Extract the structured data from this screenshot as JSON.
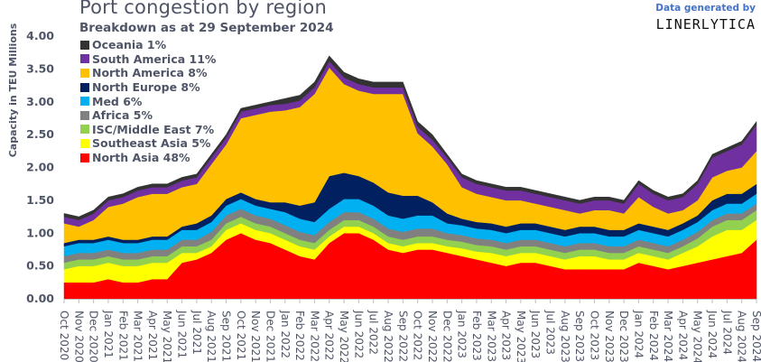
{
  "chart_data": {
    "type": "area",
    "stacked": true,
    "title": "Port congestion by region",
    "subtitle": "Breakdown as at 29 September 2024",
    "ylabel": "Capacity in TEU Millions",
    "xlabel": "",
    "ylim": [
      0,
      4
    ],
    "yticks": [
      "0.00",
      "0.50",
      "1.00",
      "1.50",
      "2.00",
      "2.50",
      "3.00",
      "3.50",
      "4.00"
    ],
    "grid": false,
    "legend_position": "top-left",
    "categories": [
      "Oct 2020",
      "Nov 2020",
      "Dec 2020",
      "Jan 2021",
      "Feb 2021",
      "Mar 2021",
      "Apr 2021",
      "May 2021",
      "Jun 2021",
      "Jul 2021",
      "Aug 2021",
      "Sep 2021",
      "Oct 2021",
      "Nov 2021",
      "Dec 2021",
      "Jan 2022",
      "Feb 2022",
      "Mar 2022",
      "Apr 2022",
      "May 2022",
      "Jun 2022",
      "Jul 2022",
      "Aug 2022",
      "Sep 2022",
      "Oct 2022",
      "Nov 2022",
      "Dec 2022",
      "Jan 2023",
      "Feb 2023",
      "Mar 2023",
      "Apr 2023",
      "May 2023",
      "Jun 2023",
      "Jul 2023",
      "Aug 2023",
      "Sep 2023",
      "Oct 2023",
      "Nov 2023",
      "Dec 2023",
      "Jan 2024",
      "Feb 2024",
      "Mar 2024",
      "Apr 2024",
      "May 2024",
      "Jun 2024",
      "Jul 2024",
      "Aug 2024",
      "Sep 2024"
    ],
    "series": [
      {
        "name": "North Asia 48%",
        "color": "#ff0000",
        "values": [
          0.25,
          0.25,
          0.25,
          0.3,
          0.25,
          0.25,
          0.3,
          0.3,
          0.55,
          0.6,
          0.7,
          0.9,
          1.0,
          0.9,
          0.85,
          0.75,
          0.65,
          0.6,
          0.85,
          1.0,
          1.0,
          0.9,
          0.75,
          0.7,
          0.75,
          0.75,
          0.7,
          0.65,
          0.6,
          0.55,
          0.5,
          0.55,
          0.55,
          0.5,
          0.45,
          0.45,
          0.45,
          0.45,
          0.45,
          0.55,
          0.5,
          0.45,
          0.5,
          0.55,
          0.6,
          0.65,
          0.7,
          0.9
        ]
      },
      {
        "name": "Southeast Asia 5%",
        "color": "#ffff00",
        "values": [
          0.2,
          0.25,
          0.25,
          0.25,
          0.25,
          0.25,
          0.25,
          0.25,
          0.15,
          0.1,
          0.1,
          0.15,
          0.15,
          0.15,
          0.15,
          0.15,
          0.15,
          0.15,
          0.1,
          0.1,
          0.1,
          0.1,
          0.1,
          0.1,
          0.1,
          0.1,
          0.1,
          0.12,
          0.12,
          0.15,
          0.15,
          0.15,
          0.15,
          0.15,
          0.15,
          0.2,
          0.2,
          0.15,
          0.15,
          0.15,
          0.15,
          0.15,
          0.2,
          0.25,
          0.35,
          0.4,
          0.35,
          0.3
        ]
      },
      {
        "name": "ISC/Middle East 7%",
        "color": "#92d050",
        "values": [
          0.1,
          0.1,
          0.1,
          0.1,
          0.1,
          0.1,
          0.1,
          0.1,
          0.1,
          0.1,
          0.1,
          0.1,
          0.1,
          0.1,
          0.1,
          0.1,
          0.1,
          0.1,
          0.1,
          0.1,
          0.1,
          0.1,
          0.1,
          0.1,
          0.1,
          0.1,
          0.1,
          0.1,
          0.1,
          0.1,
          0.1,
          0.1,
          0.1,
          0.1,
          0.1,
          0.1,
          0.1,
          0.1,
          0.1,
          0.1,
          0.1,
          0.1,
          0.1,
          0.12,
          0.15,
          0.15,
          0.15,
          0.15
        ]
      },
      {
        "name": "Africa 5%",
        "color": "#808080",
        "values": [
          0.1,
          0.1,
          0.1,
          0.1,
          0.1,
          0.1,
          0.1,
          0.1,
          0.1,
          0.1,
          0.12,
          0.12,
          0.12,
          0.12,
          0.12,
          0.12,
          0.12,
          0.12,
          0.12,
          0.12,
          0.12,
          0.12,
          0.12,
          0.12,
          0.12,
          0.12,
          0.1,
          0.1,
          0.1,
          0.1,
          0.1,
          0.1,
          0.1,
          0.1,
          0.1,
          0.1,
          0.1,
          0.1,
          0.1,
          0.1,
          0.1,
          0.1,
          0.1,
          0.1,
          0.1,
          0.1,
          0.1,
          0.1
        ]
      },
      {
        "name": "Med 6%",
        "color": "#00b0f0",
        "values": [
          0.15,
          0.15,
          0.15,
          0.15,
          0.15,
          0.15,
          0.15,
          0.15,
          0.15,
          0.15,
          0.15,
          0.15,
          0.15,
          0.15,
          0.15,
          0.2,
          0.2,
          0.2,
          0.2,
          0.2,
          0.2,
          0.2,
          0.2,
          0.2,
          0.2,
          0.2,
          0.15,
          0.15,
          0.15,
          0.15,
          0.15,
          0.15,
          0.15,
          0.15,
          0.15,
          0.15,
          0.15,
          0.15,
          0.15,
          0.15,
          0.15,
          0.15,
          0.15,
          0.15,
          0.15,
          0.15,
          0.15,
          0.15
        ]
      },
      {
        "name": "North Europe 8%",
        "color": "#002060",
        "values": [
          0.05,
          0.05,
          0.05,
          0.05,
          0.05,
          0.05,
          0.05,
          0.05,
          0.05,
          0.1,
          0.1,
          0.1,
          0.1,
          0.1,
          0.1,
          0.15,
          0.2,
          0.3,
          0.5,
          0.4,
          0.35,
          0.35,
          0.35,
          0.35,
          0.3,
          0.2,
          0.15,
          0.1,
          0.1,
          0.1,
          0.1,
          0.1,
          0.1,
          0.1,
          0.1,
          0.1,
          0.1,
          0.1,
          0.1,
          0.1,
          0.1,
          0.1,
          0.1,
          0.1,
          0.15,
          0.15,
          0.15,
          0.15
        ]
      },
      {
        "name": "North America 8%",
        "color": "#ffc000",
        "values": [
          0.3,
          0.2,
          0.3,
          0.45,
          0.55,
          0.65,
          0.65,
          0.65,
          0.6,
          0.6,
          0.78,
          0.83,
          1.13,
          1.28,
          1.38,
          1.4,
          1.5,
          1.65,
          1.65,
          1.35,
          1.3,
          1.35,
          1.5,
          1.55,
          0.95,
          0.85,
          0.75,
          0.48,
          0.43,
          0.4,
          0.4,
          0.35,
          0.3,
          0.3,
          0.3,
          0.2,
          0.25,
          0.3,
          0.25,
          0.4,
          0.3,
          0.25,
          0.2,
          0.23,
          0.35,
          0.35,
          0.4,
          0.5
        ]
      },
      {
        "name": "South America 11%",
        "color": "#7030a0",
        "values": [
          0.1,
          0.1,
          0.1,
          0.1,
          0.1,
          0.1,
          0.1,
          0.1,
          0.1,
          0.1,
          0.1,
          0.1,
          0.1,
          0.1,
          0.1,
          0.1,
          0.1,
          0.1,
          0.1,
          0.1,
          0.1,
          0.1,
          0.1,
          0.1,
          0.1,
          0.1,
          0.1,
          0.15,
          0.15,
          0.15,
          0.15,
          0.15,
          0.15,
          0.15,
          0.15,
          0.15,
          0.15,
          0.15,
          0.15,
          0.2,
          0.2,
          0.2,
          0.2,
          0.25,
          0.3,
          0.3,
          0.35,
          0.4
        ]
      },
      {
        "name": "Oceania 1%",
        "color": "#333333",
        "values": [
          0.05,
          0.05,
          0.05,
          0.05,
          0.05,
          0.05,
          0.05,
          0.05,
          0.05,
          0.05,
          0.05,
          0.05,
          0.05,
          0.05,
          0.05,
          0.08,
          0.08,
          0.08,
          0.08,
          0.08,
          0.08,
          0.08,
          0.08,
          0.08,
          0.08,
          0.08,
          0.05,
          0.05,
          0.05,
          0.05,
          0.05,
          0.05,
          0.05,
          0.05,
          0.05,
          0.05,
          0.05,
          0.05,
          0.05,
          0.05,
          0.05,
          0.05,
          0.05,
          0.05,
          0.05,
          0.05,
          0.05,
          0.05
        ]
      }
    ]
  },
  "credit": {
    "label": "Data generated by",
    "logo": "LINERLYTICA"
  }
}
